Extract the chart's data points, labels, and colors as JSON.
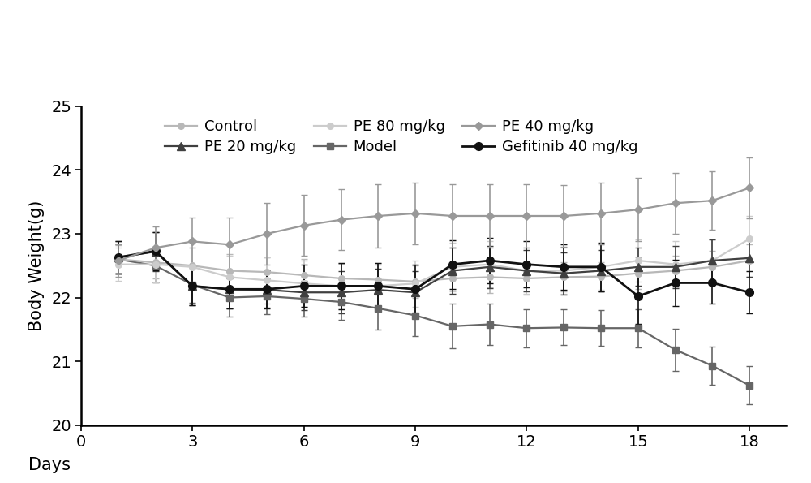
{
  "days": [
    1,
    2,
    3,
    4,
    5,
    6,
    7,
    8,
    9,
    10,
    11,
    12,
    13,
    14,
    15,
    16,
    17,
    18
  ],
  "series": {
    "Control": {
      "color": "#b8b8b8",
      "marker": "o",
      "markersize": 5.5,
      "linewidth": 1.6,
      "y": [
        22.6,
        22.55,
        22.5,
        22.42,
        22.4,
        22.35,
        22.3,
        22.28,
        22.25,
        22.3,
        22.32,
        22.3,
        22.32,
        22.33,
        22.38,
        22.42,
        22.48,
        22.58
      ],
      "yerr": [
        0.22,
        0.25,
        0.28,
        0.26,
        0.23,
        0.26,
        0.23,
        0.23,
        0.25,
        0.25,
        0.25,
        0.25,
        0.23,
        0.23,
        0.25,
        0.23,
        0.25,
        0.25
      ]
    },
    "Model": {
      "color": "#666666",
      "marker": "s",
      "markersize": 5.5,
      "linewidth": 1.6,
      "y": [
        22.6,
        22.5,
        22.2,
        22.0,
        22.02,
        21.98,
        21.93,
        21.83,
        21.72,
        21.55,
        21.58,
        21.52,
        21.53,
        21.52,
        21.52,
        21.18,
        20.93,
        20.62
      ],
      "yerr": [
        0.23,
        0.26,
        0.28,
        0.3,
        0.28,
        0.28,
        0.28,
        0.33,
        0.33,
        0.35,
        0.33,
        0.3,
        0.28,
        0.28,
        0.3,
        0.33,
        0.3,
        0.3
      ]
    },
    "PE 20 mg/kg": {
      "color": "#404040",
      "marker": "^",
      "markersize": 6.5,
      "linewidth": 1.6,
      "y": [
        22.63,
        22.72,
        22.18,
        22.13,
        22.12,
        22.08,
        22.08,
        22.12,
        22.08,
        22.42,
        22.48,
        22.42,
        22.38,
        22.42,
        22.48,
        22.48,
        22.58,
        22.62
      ],
      "yerr": [
        0.26,
        0.3,
        0.3,
        0.3,
        0.28,
        0.28,
        0.33,
        0.33,
        0.33,
        0.36,
        0.33,
        0.33,
        0.33,
        0.33,
        0.3,
        0.33,
        0.33,
        0.3
      ]
    },
    "PE 40 mg/kg": {
      "color": "#999999",
      "marker": "D",
      "markersize": 5.0,
      "linewidth": 1.6,
      "y": [
        22.58,
        22.78,
        22.88,
        22.83,
        23.0,
        23.13,
        23.22,
        23.28,
        23.32,
        23.28,
        23.28,
        23.28,
        23.28,
        23.32,
        23.38,
        23.48,
        23.52,
        23.72
      ],
      "yerr": [
        0.26,
        0.33,
        0.38,
        0.43,
        0.48,
        0.48,
        0.48,
        0.5,
        0.48,
        0.5,
        0.5,
        0.5,
        0.48,
        0.48,
        0.5,
        0.48,
        0.46,
        0.48
      ]
    },
    "PE 80 mg/kg": {
      "color": "#cccccc",
      "marker": "o",
      "markersize": 5.5,
      "linewidth": 1.6,
      "y": [
        22.52,
        22.52,
        22.48,
        22.32,
        22.27,
        22.22,
        22.18,
        22.18,
        22.22,
        22.48,
        22.52,
        22.42,
        22.42,
        22.48,
        22.58,
        22.52,
        22.58,
        22.92
      ],
      "yerr": [
        0.26,
        0.28,
        0.3,
        0.33,
        0.36,
        0.36,
        0.36,
        0.36,
        0.36,
        0.38,
        0.36,
        0.36,
        0.36,
        0.36,
        0.33,
        0.36,
        0.33,
        0.36
      ]
    },
    "Gefitinib 40 mg/kg": {
      "color": "#111111",
      "marker": "o",
      "markersize": 7.0,
      "linewidth": 2.0,
      "y": [
        22.63,
        22.73,
        22.18,
        22.13,
        22.13,
        22.18,
        22.18,
        22.18,
        22.13,
        22.52,
        22.58,
        22.52,
        22.48,
        22.48,
        22.02,
        22.23,
        22.23,
        22.08
      ],
      "yerr": [
        0.26,
        0.3,
        0.3,
        0.3,
        0.3,
        0.33,
        0.36,
        0.36,
        0.38,
        0.38,
        0.36,
        0.36,
        0.36,
        0.38,
        0.43,
        0.36,
        0.33,
        0.33
      ]
    }
  },
  "legend_row1": [
    "Control",
    "PE 20 mg/kg",
    "PE 80 mg/kg"
  ],
  "legend_row2": [
    "Model",
    "PE 40 mg/kg",
    "Gefitinib 40 mg/kg"
  ],
  "xlabel": "Days",
  "ylabel": "Body Weight(g)",
  "xlim": [
    0,
    19
  ],
  "ylim": [
    20,
    25
  ],
  "yticks": [
    20,
    21,
    22,
    23,
    24,
    25
  ],
  "xticks": [
    0,
    3,
    6,
    9,
    12,
    15,
    18
  ],
  "background_color": "#ffffff",
  "axis_fontsize": 15,
  "tick_fontsize": 14,
  "legend_fontsize": 13
}
